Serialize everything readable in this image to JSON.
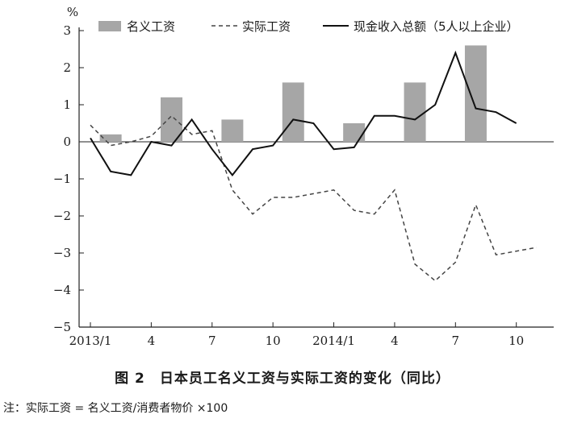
{
  "chart_data": {
    "type": "bar",
    "unit_label": "%",
    "ylim": [
      -5,
      3
    ],
    "yticks": [
      3,
      2,
      1,
      0,
      -1,
      -2,
      -3,
      -4,
      -5
    ],
    "yticklabels": [
      "3",
      "2",
      "1",
      "0",
      "−1",
      "−2",
      "−3",
      "−4",
      "−5"
    ],
    "x_months": 24,
    "xticks": [
      {
        "index": 0,
        "label": "2013/1"
      },
      {
        "index": 3,
        "label": "4"
      },
      {
        "index": 6,
        "label": "7"
      },
      {
        "index": 9,
        "label": "10"
      },
      {
        "index": 12,
        "label": "2014/1"
      },
      {
        "index": 15,
        "label": "4"
      },
      {
        "index": 18,
        "label": "7"
      },
      {
        "index": 21,
        "label": "10"
      }
    ],
    "grid": false,
    "legend_position": "top",
    "colors": {
      "bar": "#a6a6a6",
      "line": "#111111",
      "dashed": "#444444"
    },
    "series": [
      {
        "name": "名义工资",
        "kind": "bar",
        "points": [
          {
            "index": 1,
            "value": 0.2
          },
          {
            "index": 4,
            "value": 1.2
          },
          {
            "index": 7,
            "value": 0.6
          },
          {
            "index": 10,
            "value": 1.6
          },
          {
            "index": 13,
            "value": 0.5
          },
          {
            "index": 16,
            "value": 1.6
          },
          {
            "index": 19,
            "value": 2.6
          }
        ]
      },
      {
        "name": "实际工资",
        "kind": "dashed-line",
        "values": [
          0.45,
          -0.1,
          0.0,
          0.15,
          0.7,
          0.2,
          0.3,
          -1.3,
          -1.95,
          -1.5,
          -1.5,
          -1.4,
          -1.3,
          -1.85,
          -1.95,
          -1.3,
          -3.3,
          -3.75,
          -3.25,
          -1.7,
          -3.05,
          -2.95,
          -2.85
        ]
      },
      {
        "name": "现金收入总额（5人以上企业）",
        "kind": "solid-line",
        "values": [
          0.1,
          -0.8,
          -0.9,
          0.0,
          -0.1,
          0.6,
          -0.2,
          -0.9,
          -0.2,
          -0.1,
          0.6,
          0.5,
          -0.2,
          -0.15,
          0.7,
          0.7,
          0.6,
          1.0,
          2.4,
          0.9,
          0.8,
          0.5
        ]
      }
    ]
  },
  "caption": "图 2　日本员工名义工资与实际工资的变化（同比）",
  "note": "注：实际工资 = 名义工资/消费者物价 ×100"
}
